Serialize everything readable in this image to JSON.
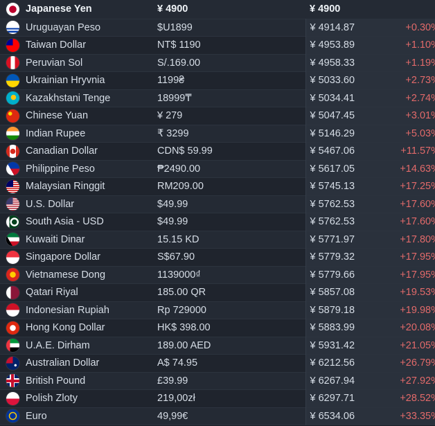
{
  "base": {
    "currency": "Japanese Yen",
    "price": "¥ 4900",
    "converted": "¥ 4900",
    "flag_icon": "japan-flag-icon"
  },
  "rows": [
    {
      "currency": "Uruguayan Peso",
      "price": "$U1899",
      "converted": "¥ 4914.87",
      "diff": "+0.30%",
      "flag_icon": "uruguay-flag-icon"
    },
    {
      "currency": "Taiwan Dollar",
      "price": "NT$ 1190",
      "converted": "¥ 4953.89",
      "diff": "+1.10%",
      "flag_icon": "taiwan-flag-icon"
    },
    {
      "currency": "Peruvian Sol",
      "price": "S/.169.00",
      "converted": "¥ 4958.33",
      "diff": "+1.19%",
      "flag_icon": "peru-flag-icon"
    },
    {
      "currency": "Ukrainian Hryvnia",
      "price": "1199₴",
      "converted": "¥ 5033.60",
      "diff": "+2.73%",
      "flag_icon": "ukraine-flag-icon"
    },
    {
      "currency": "Kazakhstani Tenge",
      "price": "18999₸",
      "converted": "¥ 5034.41",
      "diff": "+2.74%",
      "flag_icon": "kazakhstan-flag-icon"
    },
    {
      "currency": "Chinese Yuan",
      "price": "¥ 279",
      "converted": "¥ 5047.45",
      "diff": "+3.01%",
      "flag_icon": "china-flag-icon"
    },
    {
      "currency": "Indian Rupee",
      "price": "₹ 3299",
      "converted": "¥ 5146.29",
      "diff": "+5.03%",
      "flag_icon": "india-flag-icon"
    },
    {
      "currency": "Canadian Dollar",
      "price": "CDN$ 59.99",
      "converted": "¥ 5467.06",
      "diff": "+11.57%",
      "flag_icon": "canada-flag-icon"
    },
    {
      "currency": "Philippine Peso",
      "price": "₱2490.00",
      "converted": "¥ 5617.05",
      "diff": "+14.63%",
      "flag_icon": "philippines-flag-icon"
    },
    {
      "currency": "Malaysian Ringgit",
      "price": "RM209.00",
      "converted": "¥ 5745.13",
      "diff": "+17.25%",
      "flag_icon": "malaysia-flag-icon"
    },
    {
      "currency": "U.S. Dollar",
      "price": "$49.99",
      "converted": "¥ 5762.53",
      "diff": "+17.60%",
      "flag_icon": "usa-flag-icon"
    },
    {
      "currency": "South Asia - USD",
      "price": "$49.99",
      "converted": "¥ 5762.53",
      "diff": "+17.60%",
      "flag_icon": "pakistan-flag-icon"
    },
    {
      "currency": "Kuwaiti Dinar",
      "price": "15.15 KD",
      "converted": "¥ 5771.97",
      "diff": "+17.80%",
      "flag_icon": "kuwait-flag-icon"
    },
    {
      "currency": "Singapore Dollar",
      "price": "S$67.90",
      "converted": "¥ 5779.32",
      "diff": "+17.95%",
      "flag_icon": "singapore-flag-icon"
    },
    {
      "currency": "Vietnamese Dong",
      "price": "1139000₫",
      "converted": "¥ 5779.66",
      "diff": "+17.95%",
      "flag_icon": "vietnam-flag-icon"
    },
    {
      "currency": "Qatari Riyal",
      "price": "185.00 QR",
      "converted": "¥ 5857.08",
      "diff": "+19.53%",
      "flag_icon": "qatar-flag-icon"
    },
    {
      "currency": "Indonesian Rupiah",
      "price": "Rp 729000",
      "converted": "¥ 5879.18",
      "diff": "+19.98%",
      "flag_icon": "indonesia-flag-icon"
    },
    {
      "currency": "Hong Kong Dollar",
      "price": "HK$ 398.00",
      "converted": "¥ 5883.99",
      "diff": "+20.08%",
      "flag_icon": "hong-kong-flag-icon"
    },
    {
      "currency": "U.A.E. Dirham",
      "price": "189.00 AED",
      "converted": "¥ 5931.42",
      "diff": "+21.05%",
      "flag_icon": "uae-flag-icon"
    },
    {
      "currency": "Australian Dollar",
      "price": "A$ 74.95",
      "converted": "¥ 6212.56",
      "diff": "+26.79%",
      "flag_icon": "australia-flag-icon"
    },
    {
      "currency": "British Pound",
      "price": "£39.99",
      "converted": "¥ 6267.94",
      "diff": "+27.92%",
      "flag_icon": "uk-flag-icon"
    },
    {
      "currency": "Polish Zloty",
      "price": "219,00zł",
      "converted": "¥ 6297.71",
      "diff": "+28.52%",
      "flag_icon": "poland-flag-icon"
    },
    {
      "currency": "Euro",
      "price": "49,99€",
      "converted": "¥ 6534.06",
      "diff": "+33.35%",
      "flag_icon": "eu-flag-icon"
    }
  ],
  "colors": {
    "diff_positive": "#e26a6a",
    "row_dark": "#1f242d",
    "row_light": "#242a34",
    "converted_bg": "#2a313c"
  }
}
